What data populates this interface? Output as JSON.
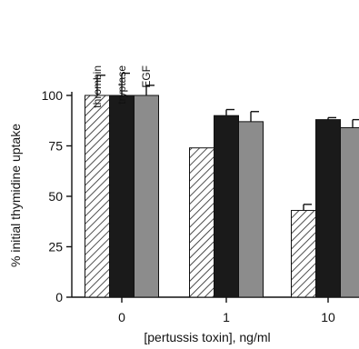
{
  "chart_data": {
    "type": "bar",
    "title": "",
    "xlabel": "[pertussis toxin], ng/ml",
    "ylabel": "% initial thymidine uptake",
    "categories": [
      "0",
      "1",
      "10"
    ],
    "ylim": [
      0,
      100
    ],
    "yticks": [
      "0",
      "25",
      "50",
      "75",
      "100"
    ],
    "grid": false,
    "legend": {
      "placement": "vertical labels above first bar group",
      "entries": [
        "thrombin",
        "tryptase",
        "EGF"
      ]
    },
    "series": [
      {
        "name": "thrombin",
        "style": "hatched",
        "color": "#ffffff",
        "values": [
          100,
          74,
          43
        ],
        "errors": [
          10,
          0,
          3
        ]
      },
      {
        "name": "tryptase",
        "style": "solid",
        "color": "#1a1a1a",
        "values": [
          100,
          90,
          88
        ],
        "errors": [
          11,
          3,
          1
        ]
      },
      {
        "name": "EGF",
        "style": "solid",
        "color": "#8c8c8c",
        "values": [
          100,
          87,
          84
        ],
        "errors": [
          5,
          5,
          4
        ]
      }
    ]
  }
}
